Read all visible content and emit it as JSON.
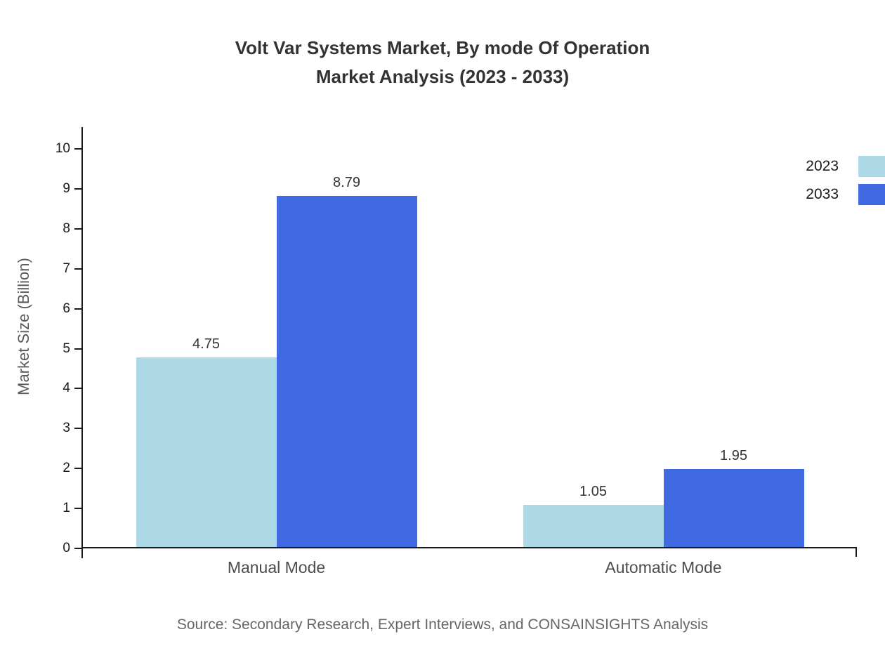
{
  "title": {
    "line1": "Volt Var Systems Market, By mode Of Operation",
    "line2": "Market Analysis (2023 - 2033)"
  },
  "chart_data": {
    "type": "bar",
    "categories": [
      "Manual Mode",
      "Automatic Mode"
    ],
    "series": [
      {
        "name": "2023",
        "color": "#add8e6",
        "values": [
          4.75,
          1.05
        ]
      },
      {
        "name": "2033",
        "color": "#4169e1",
        "values": [
          8.79,
          1.95
        ]
      }
    ],
    "title": "Volt Var Systems Market, By mode Of Operation Market Analysis (2023 - 2033)",
    "xlabel": "",
    "ylabel": "Market Size (Billion)",
    "ylim": [
      0,
      10
    ],
    "yticks": [
      0,
      1,
      2,
      3,
      4,
      5,
      6,
      7,
      8,
      9,
      10
    ],
    "grid": false,
    "legend_position": "top-right"
  },
  "source": "Source: Secondary Research, Expert Interviews, and CONSAINSIGHTS Analysis"
}
